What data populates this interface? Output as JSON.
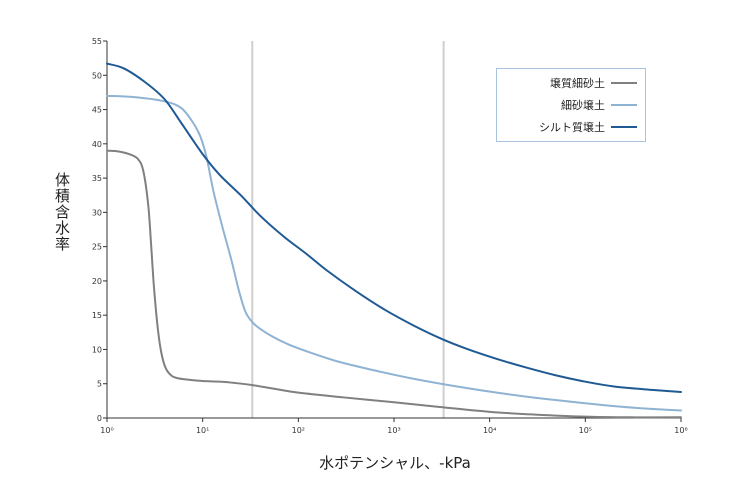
{
  "chart_data": {
    "type": "line",
    "xscale": "log",
    "xlim": [
      1,
      1000000
    ],
    "ylim": [
      0,
      55
    ],
    "xlabel": "水ポテンシャル、-kPa",
    "ylabel": "体積含水率",
    "yticks": [
      "0",
      "5",
      "10",
      "15",
      "20",
      "25",
      "30",
      "35",
      "40",
      "45",
      "50",
      "55"
    ],
    "ytick_values": [
      0,
      5,
      10,
      15,
      20,
      25,
      30,
      35,
      40,
      45,
      50,
      55
    ],
    "xticks": [
      "10⁰",
      "10¹",
      "10²",
      "10³",
      "10⁴",
      "10⁵",
      "10⁶"
    ],
    "xtick_values": [
      1,
      10,
      100,
      1000,
      10000,
      100000,
      1000000
    ],
    "reference_lines_x": [
      33,
      3300
    ],
    "legend_position": "top-right",
    "series": [
      {
        "name": "壌質細砂土",
        "color": "#808080",
        "x": [
          1,
          1.3,
          1.7,
          2.1,
          2.4,
          2.7,
          2.9,
          3.1,
          3.4,
          3.7,
          4.1,
          4.7,
          5.5,
          7,
          10,
          15,
          22,
          33,
          60,
          100,
          300,
          1000,
          3000,
          10000,
          30000,
          100000,
          300000,
          1000000
        ],
        "y": [
          39,
          38.9,
          38.5,
          37.8,
          36,
          31,
          25,
          19,
          13,
          9.5,
          7.3,
          6.2,
          5.8,
          5.6,
          5.4,
          5.3,
          5.1,
          4.8,
          4.2,
          3.7,
          3,
          2.3,
          1.6,
          0.9,
          0.5,
          0.2,
          0.1,
          0.1
        ]
      },
      {
        "name": "細砂壌土",
        "color": "#8fb3d3",
        "x": [
          1,
          2,
          4,
          6,
          8,
          9.5,
          11,
          13,
          16,
          20,
          24,
          28,
          33,
          40,
          55,
          80,
          130,
          250,
          600,
          1500,
          5000,
          15000,
          50000,
          150000,
          400000,
          1000000
        ],
        "y": [
          47,
          46.8,
          46.2,
          45.2,
          43,
          41,
          38,
          33,
          28,
          23,
          18.5,
          15.5,
          14,
          13,
          11.8,
          10.7,
          9.6,
          8.3,
          7,
          5.8,
          4.5,
          3.5,
          2.6,
          1.9,
          1.4,
          1.1
        ]
      },
      {
        "name": "シルト質壌土",
        "color": "#1f5a94",
        "x": [
          1,
          1.5,
          2.5,
          4,
          6,
          10,
          15,
          25,
          40,
          70,
          120,
          200,
          400,
          800,
          1600,
          3200,
          6000,
          12000,
          25000,
          50000,
          100000,
          200000,
          500000,
          1000000
        ],
        "y": [
          51.7,
          51,
          49,
          46.5,
          43,
          38.5,
          35.5,
          32.5,
          29.5,
          26.5,
          24,
          21.5,
          18.5,
          15.8,
          13.5,
          11.5,
          10,
          8.6,
          7.3,
          6.2,
          5.3,
          4.6,
          4.1,
          3.8
        ]
      }
    ]
  }
}
